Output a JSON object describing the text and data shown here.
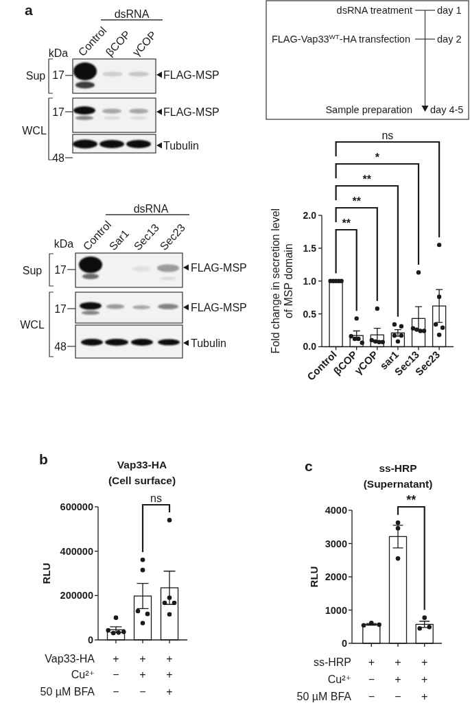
{
  "chart_data": [
    {
      "type": "other",
      "annotations": [
        "a",
        "dsRNA",
        "kDa",
        "Control",
        "βCOP",
        "γCOP",
        "Sup",
        "WCL",
        "17",
        "17",
        "48",
        "FLAG-MSP",
        "FLAG-MSP",
        "Tubulin"
      ]
    },
    {
      "type": "other",
      "annotations": [
        "dsRNA treatment",
        "day 1",
        "FLAG-Vap33$^{WT}$-HA transfection",
        "day 2",
        "Sample preparation",
        "day 4-5"
      ]
    },
    {
      "type": "other",
      "annotations": [
        "dsRNA",
        "kDa",
        "Control",
        "Sar1",
        "Sec13",
        "Sec23",
        "Sup",
        "WCL",
        "17",
        "17",
        "48",
        "FLAG-MSP",
        "FLAG-MSP",
        "Tubulin"
      ]
    },
    {
      "type": "bar",
      "categories": [
        "Control",
        "βCOP",
        "γCOP",
        "sar1",
        "Sec13",
        "Sec23"
      ],
      "ylabel": "Fold change in secretion level\nof MSP domain",
      "ylim": [
        0,
        2
      ],
      "yticks": [
        {
          "value": 0,
          "label": "0.0"
        },
        0.5,
        {
          "value": 1,
          "label": "1.0"
        },
        1.5,
        {
          "value": 2,
          "label": "2.0"
        }
      ],
      "marker": "circle",
      "annotations": [
        "**",
        "**",
        "**",
        "*",
        "ns"
      ],
      "series": [
        {
          "type": "bar",
          "color": "#ffffff",
          "values": [
            1.0,
            0.17,
            0.18,
            0.21,
            0.43,
            0.62
          ],
          "errors": [
            null,
            0.07,
            0.1,
            0.05,
            0.18,
            0.25
          ]
        },
        {
          "type": "scatter",
          "color": "#1a1a1a",
          "x": [
            "Control",
            "Control",
            "Control",
            "Control",
            "Control",
            "βCOP",
            "βCOP",
            "βCOP",
            "βCOP",
            "βCOP",
            "γCOP",
            "γCOP",
            "γCOP",
            "γCOP",
            "γCOP",
            "sar1",
            "sar1",
            "sar1",
            "sar1",
            "sar1",
            "Sec13",
            "Sec13",
            "Sec13",
            "Sec13",
            "Sec13",
            "Sec23",
            "Sec23",
            "Sec23",
            "Sec23",
            "Sec23"
          ],
          "values": [
            1,
            1,
            1,
            1,
            1,
            0.43,
            0.16,
            0.12,
            0.12,
            0.06,
            0.58,
            0.1,
            0.08,
            0.07,
            0.07,
            0.34,
            0.31,
            0.17,
            0.17,
            0.08,
            1.13,
            0.28,
            0.26,
            0.24,
            0.24,
            1.55,
            0.76,
            0.34,
            0.29,
            0.18
          ]
        }
      ]
    },
    {
      "type": "bar",
      "title": "Vap33-HA\n(Cell surface)",
      "annotations": [
        "b",
        "ns"
      ],
      "ylabel": "RLU",
      "xlabel": "Vap33-HA\nCu²⁺\n50 µM BFA",
      "categories": [
        "+\n−\n−",
        "+\n+\n−",
        "+\n+\n+"
      ],
      "ylim": [
        0,
        600000
      ],
      "yticks": [
        0,
        200000,
        400000,
        600000
      ],
      "marker": "circle",
      "series": [
        {
          "type": "bar",
          "color": "#ffffff",
          "values": [
            46000,
            198000,
            235000
          ],
          "errors": [
            13000,
            57000,
            75000
          ]
        },
        {
          "type": "scatter",
          "color": "#1a1a1a",
          "x": [
            "+\n−\n−",
            "+\n−\n−",
            "+\n−\n−",
            "+\n−\n−",
            "+\n−\n−",
            "+\n+\n−",
            "+\n+\n−",
            "+\n+\n−",
            "+\n+\n−",
            "+\n+\n−",
            "+\n+\n+",
            "+\n+\n+",
            "+\n+\n+",
            "+\n+\n+",
            "+\n+\n+"
          ],
          "values": [
            100000,
            43000,
            31000,
            33000,
            36000,
            361000,
            315000,
            130000,
            117000,
            76000,
            540000,
            190000,
            167000,
            167000,
            115000
          ]
        }
      ]
    },
    {
      "type": "bar",
      "title": "ss-HRP\n(Supernatant)",
      "annotations": [
        "c",
        "**"
      ],
      "ylabel": "RLU",
      "xlabel": "ss-HRP\nCu²⁺\n50 µM BFA",
      "categories": [
        "+\n−\n−",
        "+\n+\n−",
        "+\n+\n+"
      ],
      "ylim": [
        0,
        4000
      ],
      "yticks": [
        0,
        1000,
        2000,
        3000,
        4000
      ],
      "marker": "circle",
      "series": [
        {
          "type": "bar",
          "color": "#ffffff",
          "values": [
            570,
            3210,
            570
          ],
          "errors": [
            25,
            340,
            95
          ]
        },
        {
          "type": "scatter",
          "color": "#1a1a1a",
          "x": [
            "+\n−\n−",
            "+\n−\n−",
            "+\n−\n−",
            "+\n+\n−",
            "+\n+\n−",
            "+\n+\n−",
            "+\n+\n+",
            "+\n+\n+",
            "+\n+\n+"
          ],
          "values": [
            540,
            610,
            560,
            3630,
            3460,
            2550,
            770,
            450,
            490
          ]
        }
      ]
    }
  ]
}
